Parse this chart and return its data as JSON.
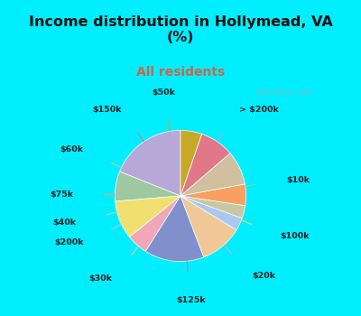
{
  "title": "Income distribution in Hollymead, VA\n(%)",
  "subtitle": "All residents",
  "title_color": "#111111",
  "subtitle_color": "#cc6644",
  "background_cyan": "#00eeff",
  "background_chart": "#dff0e8",
  "labels": [
    "> $200k",
    "$10k",
    "$100k",
    "$20k",
    "$125k",
    "$30k",
    "$200k",
    "$40k",
    "$75k",
    "$60k",
    "$150k",
    "$50k"
  ],
  "values": [
    18,
    7,
    9,
    5,
    14,
    10,
    3,
    3,
    5,
    8,
    8,
    5
  ],
  "colors": [
    "#b8a8d8",
    "#9dc8a0",
    "#f0e070",
    "#f0a8b8",
    "#8090cc",
    "#f0c898",
    "#a8c8f0",
    "#c8c8a0",
    "#f8a060",
    "#d0c0a0",
    "#e07888",
    "#c8a828"
  ],
  "startangle": 90
}
